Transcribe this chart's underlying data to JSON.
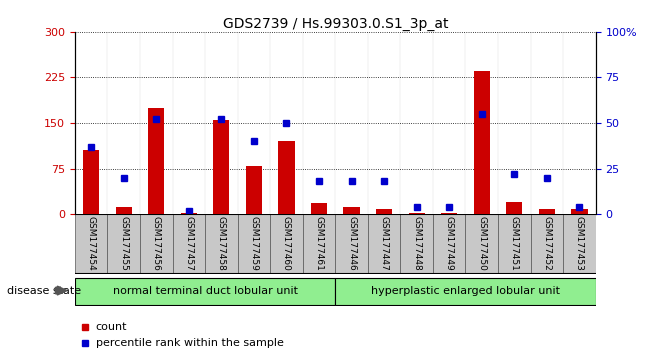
{
  "title": "GDS2739 / Hs.99303.0.S1_3p_at",
  "samples": [
    "GSM177454",
    "GSM177455",
    "GSM177456",
    "GSM177457",
    "GSM177458",
    "GSM177459",
    "GSM177460",
    "GSM177461",
    "GSM177446",
    "GSM177447",
    "GSM177448",
    "GSM177449",
    "GSM177450",
    "GSM177451",
    "GSM177452",
    "GSM177453"
  ],
  "counts": [
    105,
    12,
    175,
    2,
    155,
    80,
    120,
    18,
    12,
    8,
    2,
    2,
    235,
    20,
    8,
    8
  ],
  "percentiles": [
    37,
    20,
    52,
    2,
    52,
    40,
    50,
    18,
    18,
    18,
    4,
    4,
    55,
    22,
    20,
    4
  ],
  "ylim_left": [
    0,
    300
  ],
  "ylim_right": [
    0,
    100
  ],
  "yticks_left": [
    0,
    75,
    150,
    225,
    300
  ],
  "yticks_right": [
    0,
    25,
    50,
    75,
    100
  ],
  "bar_color": "#cc0000",
  "dot_color": "#0000cc",
  "tick_label_color_left": "#cc0000",
  "tick_label_color_right": "#0000cc",
  "group1_label": "normal terminal duct lobular unit",
  "group2_label": "hyperplastic enlarged lobular unit",
  "group1_count": 8,
  "group2_count": 8,
  "disease_state_label": "disease state",
  "legend_count_label": "count",
  "legend_percentile_label": "percentile rank within the sample",
  "group_bg_color": "#90ee90",
  "xticklabel_bg_color": "#c8c8c8",
  "panel_bg_color": "#ffffff",
  "title_fontsize": 10,
  "tick_fontsize": 8,
  "label_fontsize": 8,
  "legend_fontsize": 8
}
